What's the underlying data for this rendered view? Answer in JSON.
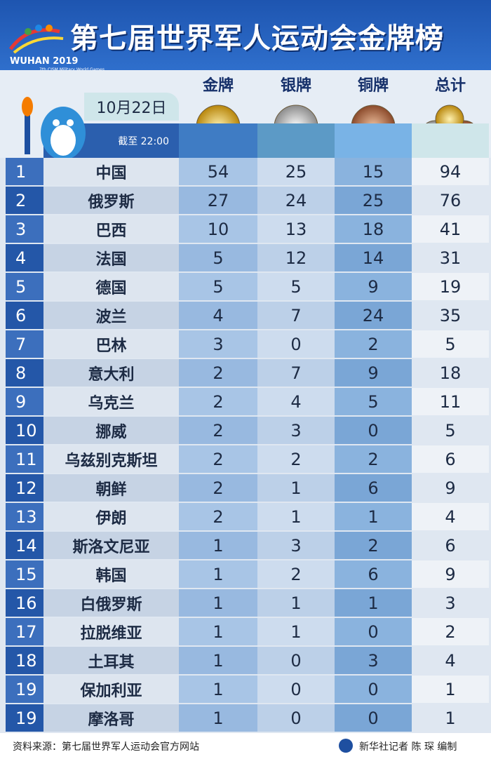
{
  "header": {
    "title": "第七届世界军人运动会金牌榜",
    "logo_text": "WUHAN 2019",
    "logo_subtext": "7th CISM Military World Games",
    "date": "10月22日",
    "time_note": "截至 22:00"
  },
  "table": {
    "columns": [
      "金牌",
      "银牌",
      "铜牌",
      "总计"
    ],
    "rows": [
      [
        1,
        "中国",
        54,
        25,
        15,
        94
      ],
      [
        2,
        "俄罗斯",
        27,
        24,
        25,
        76
      ],
      [
        3,
        "巴西",
        10,
        13,
        18,
        41
      ],
      [
        4,
        "法国",
        5,
        12,
        14,
        31
      ],
      [
        5,
        "德国",
        5,
        5,
        9,
        19
      ],
      [
        6,
        "波兰",
        4,
        7,
        24,
        35
      ],
      [
        7,
        "巴林",
        3,
        0,
        2,
        5
      ],
      [
        8,
        "意大利",
        2,
        7,
        9,
        18
      ],
      [
        9,
        "乌克兰",
        2,
        4,
        5,
        11
      ],
      [
        10,
        "挪威",
        2,
        3,
        0,
        5
      ],
      [
        11,
        "乌兹别克斯坦",
        2,
        2,
        2,
        6
      ],
      [
        12,
        "朝鲜",
        2,
        1,
        6,
        9
      ],
      [
        13,
        "伊朗",
        2,
        1,
        1,
        4
      ],
      [
        14,
        "斯洛文尼亚",
        1,
        3,
        2,
        6
      ],
      [
        15,
        "韩国",
        1,
        2,
        6,
        9
      ],
      [
        16,
        "白俄罗斯",
        1,
        1,
        1,
        3
      ],
      [
        17,
        "拉脱维亚",
        1,
        1,
        0,
        2
      ],
      [
        18,
        "土耳其",
        1,
        0,
        3,
        4
      ],
      [
        19,
        "保加利亚",
        1,
        0,
        0,
        1
      ],
      [
        19,
        "摩洛哥",
        1,
        0,
        0,
        1
      ]
    ]
  },
  "footer": {
    "source": "资料来源：第七届世界军人运动会官方网站",
    "credit": "新华社记者 陈 琛 编制"
  }
}
